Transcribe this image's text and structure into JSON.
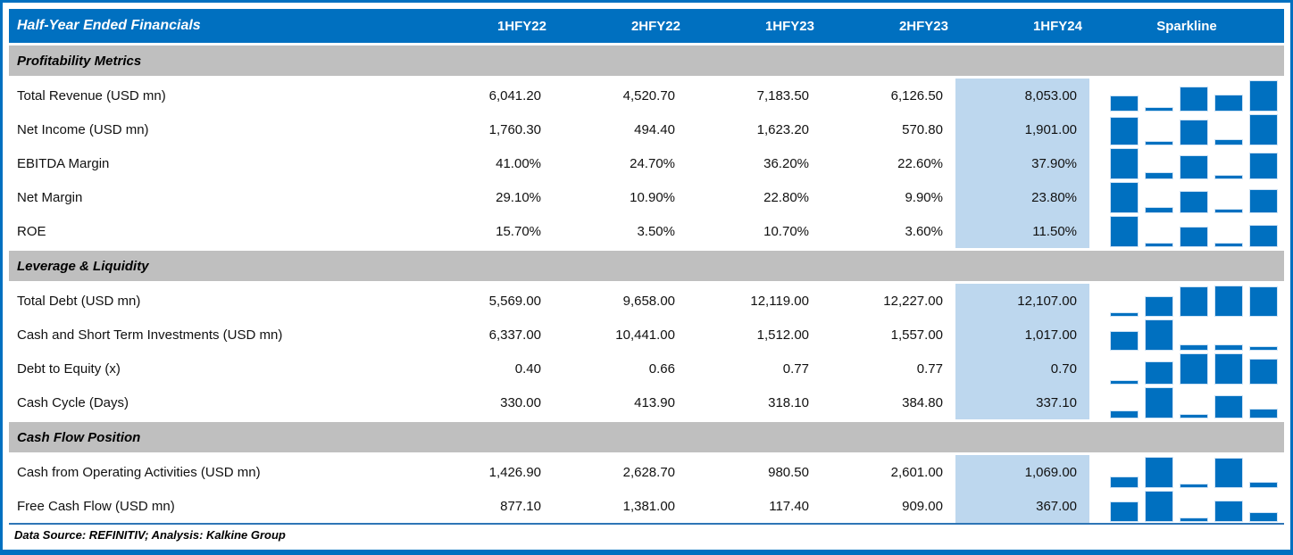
{
  "colors": {
    "header_blue": "#0070C0",
    "section_gray": "#BFBFBF",
    "highlight_light_blue": "#BDD7EE",
    "sparkline_blue": "#0070C0",
    "frame_border_blue": "#0070C0"
  },
  "table": {
    "title": "Half-Year Ended Financials",
    "columns": [
      "1HFY22",
      "2HFY22",
      "1HFY23",
      "2HFY23",
      "1HFY24"
    ],
    "sparkline_header": "Sparkline",
    "highlighted_column": "1HFY24",
    "sections": [
      {
        "label": "Profitability Metrics",
        "rows": [
          {
            "label": "Total Revenue (USD mn)",
            "values": [
              "6,041.20",
              "4,520.70",
              "7,183.50",
              "6,126.50",
              "8,053.00"
            ],
            "numeric": [
              6041.2,
              4520.7,
              7183.5,
              6126.5,
              8053.0
            ]
          },
          {
            "label": "Net Income (USD mn)",
            "values": [
              "1,760.30",
              "494.40",
              "1,623.20",
              "570.80",
              "1,901.00"
            ],
            "numeric": [
              1760.3,
              494.4,
              1623.2,
              570.8,
              1901.0
            ]
          },
          {
            "label": "EBITDA Margin",
            "values": [
              "41.00%",
              "24.70%",
              "36.20%",
              "22.60%",
              "37.90%"
            ],
            "numeric": [
              41.0,
              24.7,
              36.2,
              22.6,
              37.9
            ]
          },
          {
            "label": "Net Margin",
            "values": [
              "29.10%",
              "10.90%",
              "22.80%",
              "9.90%",
              "23.80%"
            ],
            "numeric": [
              29.1,
              10.9,
              22.8,
              9.9,
              23.8
            ]
          },
          {
            "label": "ROE",
            "values": [
              "15.70%",
              "3.50%",
              "10.70%",
              "3.60%",
              "11.50%"
            ],
            "numeric": [
              15.7,
              3.5,
              10.7,
              3.6,
              11.5
            ]
          }
        ]
      },
      {
        "label": "Leverage & Liquidity",
        "rows": [
          {
            "label": "Total Debt (USD mn)",
            "values": [
              "5,569.00",
              "9,658.00",
              "12,119.00",
              "12,227.00",
              "12,107.00"
            ],
            "numeric": [
              5569.0,
              9658.0,
              12119.0,
              12227.0,
              12107.0
            ]
          },
          {
            "label": "Cash and Short Term Investments (USD mn)",
            "values": [
              "6,337.00",
              "10,441.00",
              "1,512.00",
              "1,557.00",
              "1,017.00"
            ],
            "numeric": [
              6337.0,
              10441.0,
              1512.0,
              1557.0,
              1017.0
            ]
          },
          {
            "label": "Debt to Equity (x)",
            "values": [
              "0.40",
              "0.66",
              "0.77",
              "0.77",
              "0.70"
            ],
            "numeric": [
              0.4,
              0.66,
              0.77,
              0.77,
              0.7
            ]
          },
          {
            "label": "Cash Cycle (Days)",
            "values": [
              "330.00",
              "413.90",
              "318.10",
              "384.80",
              "337.10"
            ],
            "numeric": [
              330.0,
              413.9,
              318.1,
              384.8,
              337.1
            ]
          }
        ]
      },
      {
        "label": "Cash Flow Position",
        "rows": [
          {
            "label": "Cash from Operating Activities (USD mn)",
            "values": [
              "1,426.90",
              "2,628.70",
              "980.50",
              "2,601.00",
              "1,069.00"
            ],
            "numeric": [
              1426.9,
              2628.7,
              980.5,
              2601.0,
              1069.0
            ]
          },
          {
            "label": "Free Cash Flow (USD mn)",
            "values": [
              "877.10",
              "1,381.00",
              "117.40",
              "909.00",
              "367.00"
            ],
            "numeric": [
              877.1,
              1381.0,
              117.4,
              909.0,
              367.0
            ]
          }
        ]
      }
    ]
  },
  "footer": {
    "text": "Data Source: REFINITIV; Analysis: Kalkine Group"
  }
}
